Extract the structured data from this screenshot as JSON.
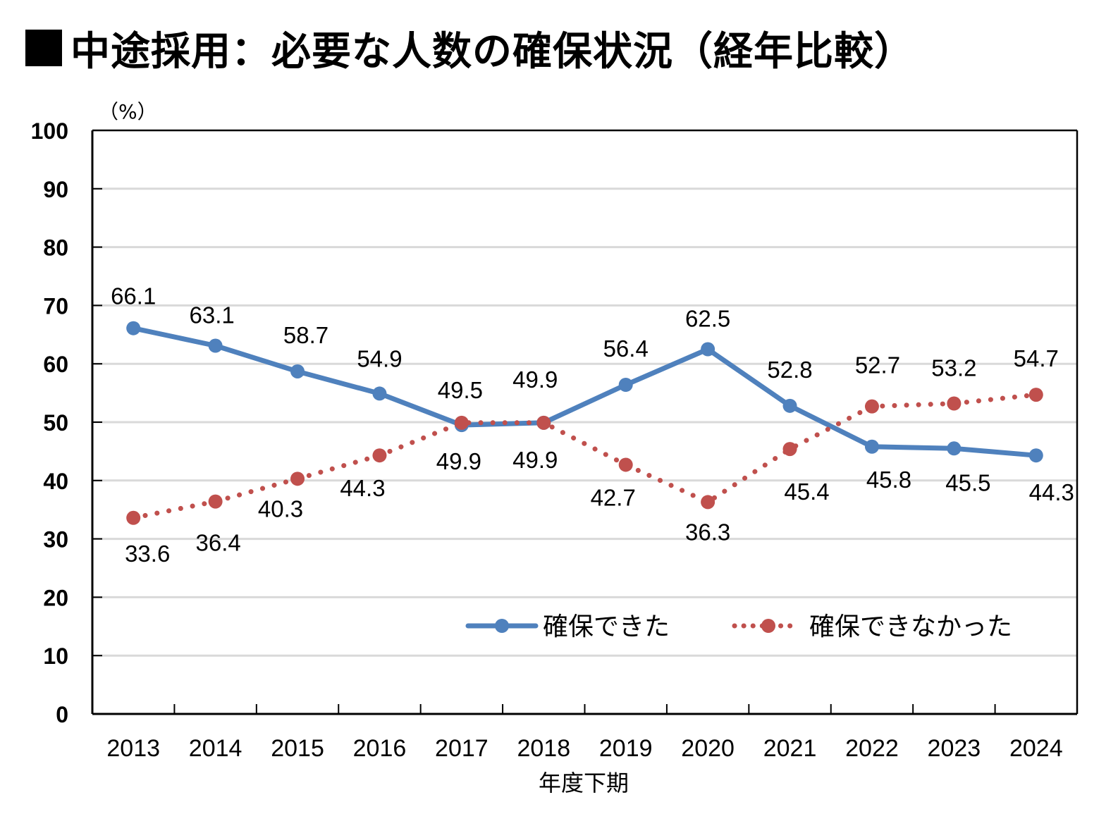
{
  "title": "中途採用：必要な人数の確保状況（経年比較）",
  "chart_data": {
    "type": "line",
    "title": "中途採用：必要な人数の確保状況（経年比較）",
    "unit_label": "（%）",
    "xlabel": "年度下期",
    "ylabel": "%",
    "ylim": [
      0,
      100
    ],
    "yticks": [
      0,
      10,
      20,
      30,
      40,
      50,
      60,
      70,
      80,
      90,
      100
    ],
    "grid": true,
    "legend_position": "bottom-right (inside plot)",
    "categories": [
      "2013",
      "2014",
      "2015",
      "2016",
      "2017",
      "2018",
      "2019",
      "2020",
      "2021",
      "2022",
      "2023",
      "2024"
    ],
    "series": [
      {
        "name": "確保できた",
        "style": "solid",
        "color": "#4f81bd",
        "values": [
          66.1,
          63.1,
          58.7,
          54.9,
          49.5,
          49.9,
          56.4,
          62.5,
          52.8,
          45.8,
          45.5,
          44.3
        ],
        "label_positions": [
          "above",
          "above",
          "above",
          "above",
          "above",
          "above",
          "above",
          "above",
          "above",
          "below",
          "below",
          "below"
        ]
      },
      {
        "name": "確保できなかった",
        "style": "dotted",
        "color": "#c0504d",
        "values": [
          33.6,
          36.4,
          40.3,
          44.3,
          49.9,
          49.9,
          42.7,
          36.3,
          45.4,
          52.7,
          53.2,
          54.7
        ],
        "label_positions": [
          "below",
          "below",
          "below",
          "below",
          "below",
          "below",
          "below",
          "below",
          "below",
          "above",
          "above",
          "above"
        ]
      }
    ]
  }
}
